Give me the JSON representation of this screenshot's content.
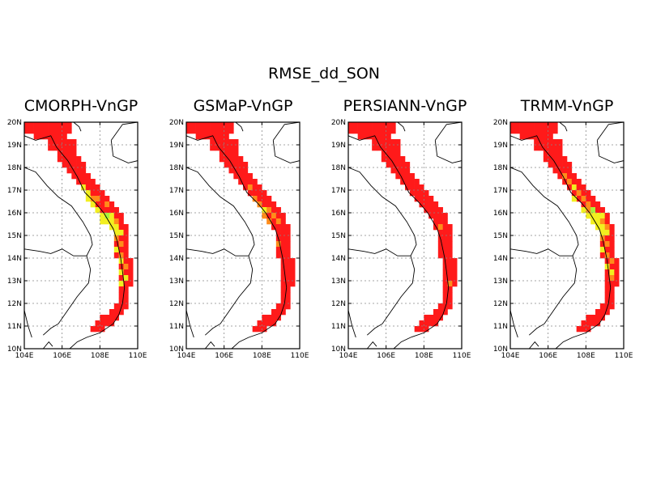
{
  "figure": {
    "title": "RMSE_dd_SON",
    "panels": [
      {
        "title": "CMORPH-VnGP"
      },
      {
        "title": "GSMaP-VnGP"
      },
      {
        "title": "PERSIANN-VnGP"
      },
      {
        "title": "TRMM-VnGP"
      }
    ],
    "lat_ticks": [
      "20N",
      "19N",
      "18N",
      "17N",
      "16N",
      "15N",
      "14N",
      "13N",
      "12N",
      "11N",
      "10N"
    ],
    "lon_ticks": [
      "104E",
      "106E",
      "108E",
      "110E"
    ],
    "extent": {
      "lon": [
        104,
        110
      ],
      "lat": [
        10,
        20
      ]
    },
    "grid": "dotted",
    "colors": {
      "red": "#ff1a1a",
      "orange": "#ff8c1a",
      "yellow": "#f2ef1f",
      "lightgreen": "#a8f23a",
      "gray": "#9a9a9a"
    }
  }
}
